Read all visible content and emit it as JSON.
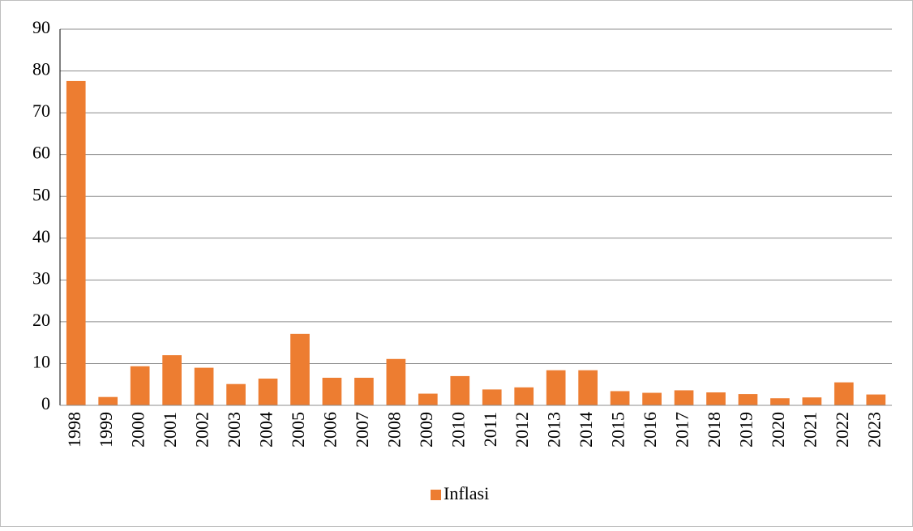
{
  "chart_data": {
    "type": "bar",
    "categories": [
      "1998",
      "1999",
      "2000",
      "2001",
      "2002",
      "2003",
      "2004",
      "2005",
      "2006",
      "2007",
      "2008",
      "2009",
      "2010",
      "2011",
      "2012",
      "2013",
      "2014",
      "2015",
      "2016",
      "2017",
      "2018",
      "2019",
      "2020",
      "2021",
      "2022",
      "2023"
    ],
    "series": [
      {
        "name": "Inflasi",
        "color": "#ed7d31",
        "values": [
          77.6,
          2.0,
          9.35,
          12.0,
          9.0,
          5.1,
          6.4,
          17.1,
          6.6,
          6.6,
          11.1,
          2.8,
          7.0,
          3.8,
          4.3,
          8.4,
          8.4,
          3.4,
          3.0,
          3.6,
          3.1,
          2.7,
          1.7,
          1.9,
          5.5,
          2.6
        ]
      }
    ],
    "ylim": [
      0,
      90
    ],
    "yticks": [
      0,
      10,
      20,
      30,
      40,
      50,
      60,
      70,
      80,
      90
    ],
    "grid": true,
    "legend": "bottom"
  }
}
